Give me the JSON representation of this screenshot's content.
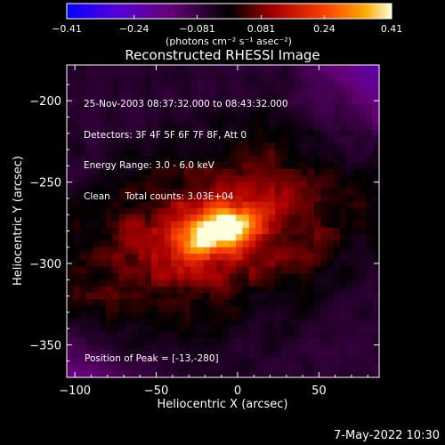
{
  "chart_data": {
    "type": "heatmap",
    "title": "Reconstructed RHESSI Image",
    "xlabel": "Heliocentric X (arcsec)",
    "ylabel": "Heliocentric Y (arcsec)",
    "xlim": [
      -105,
      87
    ],
    "ylim": [
      -370,
      -178
    ],
    "x_ticks": [
      -100,
      -50,
      0,
      50
    ],
    "x_tick_labels": [
      "−100",
      "−50",
      "0",
      "50"
    ],
    "y_ticks": [
      -200,
      -250,
      -300,
      -350
    ],
    "y_tick_labels": [
      "−200",
      "−250",
      "−300",
      "−350"
    ],
    "colorbar": {
      "range": [
        -0.41,
        0.41
      ],
      "ticks": [
        -0.41,
        -0.24,
        -0.081,
        0.081,
        0.24,
        0.41
      ],
      "tick_labels": [
        "−0.41",
        "−0.24",
        "−0.081",
        "0.081",
        "0.24",
        "0.41"
      ],
      "unit_label": "(photons cm⁻² s⁻¹ asec⁻²)",
      "colors": [
        "#0000ff",
        "#6600cc",
        "#660066",
        "#000000",
        "#aa0000",
        "#ff4400",
        "#ffaa00",
        "#ffffcc"
      ]
    },
    "annotations": [
      "25-Nov-2003 08:37:32.000 to 08:43:32.000",
      "Detectors: 3F 4F 5F 6F 7F 8F, Att 0",
      "Energy Range: 3.0 - 6.0 keV",
      "Clean     Total counts: 3.03E+04"
    ],
    "peak_label": "Position of Peak = [-13,-280]",
    "peak": [
      -13,
      -280
    ],
    "grid": false
  },
  "footer": "7-May-2022 10:30"
}
